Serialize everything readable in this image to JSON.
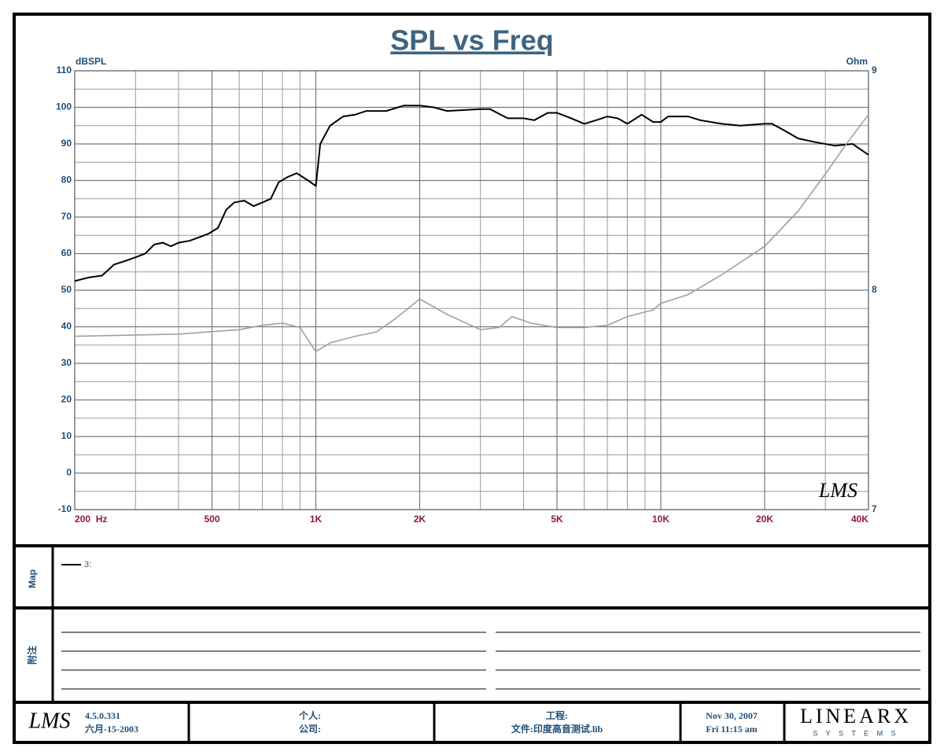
{
  "chart_data": {
    "type": "line",
    "title": "SPL vs Freq",
    "ylabel": "dBSPL",
    "y2label": "Ohm",
    "xscale": "log",
    "xlim": [
      200,
      40000
    ],
    "xticks": [
      {
        "value": 200,
        "label": "200  Hz"
      },
      500,
      {
        "value": 1000,
        "label": "1K"
      },
      {
        "value": 2000,
        "label": "2K"
      },
      {
        "value": 5000,
        "label": "5K"
      },
      {
        "value": 10000,
        "label": "10K"
      },
      {
        "value": 20000,
        "label": "20K"
      },
      {
        "value": 40000,
        "label": "40K"
      }
    ],
    "xminor_ticks": [
      300,
      400,
      600,
      700,
      800,
      900,
      3000,
      4000,
      6000,
      7000,
      8000,
      9000,
      30000
    ],
    "ylim": [
      -10,
      110
    ],
    "yticks": [
      -10,
      0,
      10,
      20,
      30,
      40,
      50,
      60,
      70,
      80,
      90,
      100,
      110
    ],
    "yminor_ticks": [
      -5,
      5,
      15,
      25,
      35,
      45,
      55,
      65,
      75,
      85,
      95,
      105
    ],
    "y2lim": [
      7,
      9
    ],
    "y2ticks": [
      7,
      8,
      9
    ],
    "grid": true,
    "watermark": "LMS",
    "series": [
      {
        "name": "3:",
        "color": "#000000",
        "x": [
          200,
          220,
          240,
          260,
          280,
          300,
          320,
          340,
          360,
          380,
          400,
          430,
          460,
          490,
          520,
          550,
          580,
          620,
          660,
          700,
          740,
          780,
          830,
          880,
          950,
          1000,
          1030,
          1100,
          1200,
          1300,
          1400,
          1600,
          1800,
          2000,
          2200,
          2400,
          3000,
          3200,
          3600,
          4000,
          4300,
          4700,
          5000,
          5500,
          6000,
          6500,
          7000,
          7500,
          8000,
          8800,
          9500,
          10000,
          10500,
          12000,
          13000,
          15000,
          17000,
          20000,
          21000,
          23000,
          25000,
          28000,
          32000,
          36000,
          40000
        ],
        "values": [
          52.5,
          53.5,
          54,
          57,
          58,
          59,
          60,
          62.5,
          63,
          62,
          63,
          63.5,
          64.5,
          65.5,
          67,
          72,
          74,
          74.5,
          73,
          74,
          75,
          79.5,
          81,
          82,
          80,
          78.5,
          90,
          95,
          97.5,
          98,
          99,
          99,
          100.5,
          100.5,
          100,
          99,
          99.5,
          99.5,
          97,
          97,
          96.5,
          98.5,
          98.5,
          97,
          95.5,
          96.5,
          97.5,
          97,
          95.5,
          98,
          96,
          96,
          97.5,
          97.5,
          96.5,
          95.5,
          95,
          95.5,
          95.5,
          93.5,
          91.5,
          90.5,
          89.5,
          90,
          87
        ]
      },
      {
        "color": "#a0a0a0",
        "axis": "y2",
        "x": [
          200,
          400,
          600,
          700,
          800,
          900,
          1000,
          1100,
          1300,
          1500,
          1700,
          2000,
          2400,
          3000,
          3400,
          3700,
          4200,
          5000,
          6000,
          7000,
          8000,
          9500,
          10000,
          12000,
          15000,
          20000,
          25000,
          30000,
          35000,
          40000
        ],
        "values": [
          7.79,
          7.8,
          7.82,
          7.84,
          7.85,
          7.83,
          7.72,
          7.76,
          7.79,
          7.81,
          7.87,
          7.96,
          7.89,
          7.82,
          7.83,
          7.88,
          7.85,
          7.83,
          7.83,
          7.84,
          7.88,
          7.91,
          7.94,
          7.98,
          8.07,
          8.2,
          8.36,
          8.53,
          8.68,
          8.8
        ]
      }
    ]
  },
  "map_panel": {
    "label": "Map"
  },
  "notes_panel": {
    "label": "附注"
  },
  "footer": {
    "logo": "LMS",
    "version": "4.5.0.331",
    "date_built": "六月-15-2003",
    "person": "个人:",
    "company": "公司:",
    "project": "工程:",
    "file": "文件:印度高音测试.lib",
    "date": "Nov 30, 2007",
    "time": "Fri 11:15 am",
    "brand": "LINEARX",
    "brand_sub": "S Y S T E M S"
  }
}
